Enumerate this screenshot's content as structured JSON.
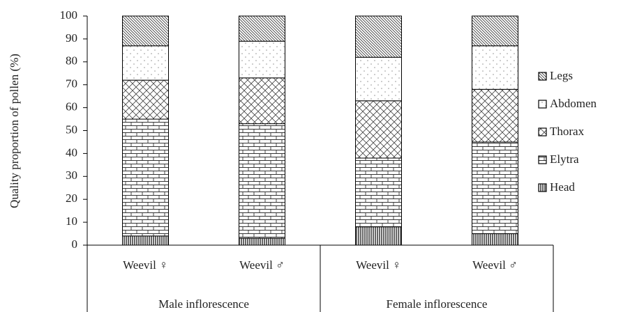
{
  "chart_data": {
    "type": "stacked_bar",
    "y_axis_label": "Quality proportion of pollen (%)",
    "categories": [
      "Weevil ♀",
      "Weevil ♂",
      "Weevil ♀",
      "Weevil ♂"
    ],
    "groups": [
      "Male inflorescence",
      "Female inflorescence"
    ],
    "series": [
      {
        "name": "Head",
        "pattern": "vertical",
        "color": "#000000",
        "values": [
          4,
          3,
          8,
          5
        ]
      },
      {
        "name": "Elytra",
        "pattern": "brick",
        "color": "#000000",
        "values": [
          51,
          50,
          30,
          40
        ]
      },
      {
        "name": "Thorax",
        "pattern": "crosshatch",
        "color": "#000000",
        "values": [
          17,
          20,
          25,
          23
        ]
      },
      {
        "name": "Abdomen",
        "pattern": "dots",
        "color": "#000000",
        "values": [
          15,
          16,
          19,
          19
        ]
      },
      {
        "name": "Legs",
        "pattern": "diagonal",
        "color": "#000000",
        "values": [
          13,
          11,
          18,
          13
        ]
      }
    ],
    "ylim": [
      0,
      100
    ],
    "yticks": [
      0,
      10,
      20,
      30,
      40,
      50,
      60,
      70,
      80,
      90,
      100
    ],
    "legend": "right"
  }
}
